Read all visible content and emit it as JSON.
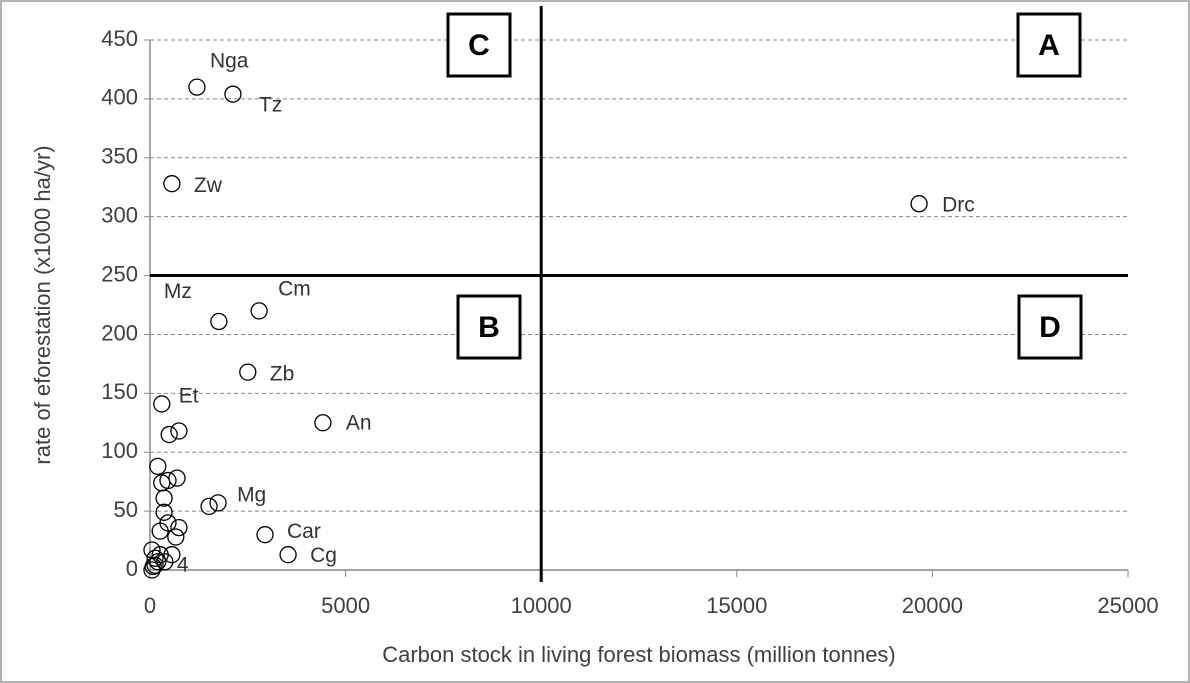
{
  "chart_data": {
    "type": "scatter",
    "x_label": "Carbon stock in living forest biomass (million tonnes)",
    "y_label": "rate of eforestation (x1000 ha/yr)",
    "xlim": [
      0,
      25000
    ],
    "ylim": [
      0,
      450
    ],
    "xticks": [
      0,
      5000,
      10000,
      15000,
      20000,
      25000
    ],
    "yticks": [
      0,
      50,
      100,
      150,
      200,
      250,
      300,
      350,
      400,
      450
    ],
    "grid": true,
    "vlines": [
      10000
    ],
    "hlines": [
      250
    ],
    "quadrant_labels": [
      "C",
      "A",
      "B",
      "D"
    ],
    "series": [
      {
        "color": "#000000",
        "x": [
          1200,
          2120,
          560,
          19660,
          1760,
          2790,
          2500,
          300,
          4420,
          490,
          740,
          200,
          300,
          460,
          690,
          360,
          360,
          1510,
          1740,
          460,
          740,
          660,
          260,
          2940,
          3530,
          560,
          50,
          130,
          200,
          80,
          260,
          380,
          50,
          130
        ],
        "values": [
          410,
          404,
          328,
          311,
          211,
          220,
          168,
          141,
          125,
          115,
          118,
          88,
          74,
          76,
          78,
          61,
          49,
          54,
          57,
          40,
          36,
          28,
          33,
          30,
          13,
          13,
          17,
          10,
          7,
          3,
          13,
          7,
          0,
          4
        ],
        "point_labels": [
          "Nga",
          "Tz",
          "Zw",
          "Drc",
          "Mz",
          "Cm",
          "Zb",
          "Et",
          "An",
          null,
          null,
          null,
          null,
          null,
          null,
          null,
          null,
          null,
          "Mg",
          null,
          null,
          null,
          null,
          "Car",
          "Cg",
          null,
          null,
          null,
          null,
          null,
          null,
          "4",
          null,
          null
        ]
      }
    ]
  }
}
